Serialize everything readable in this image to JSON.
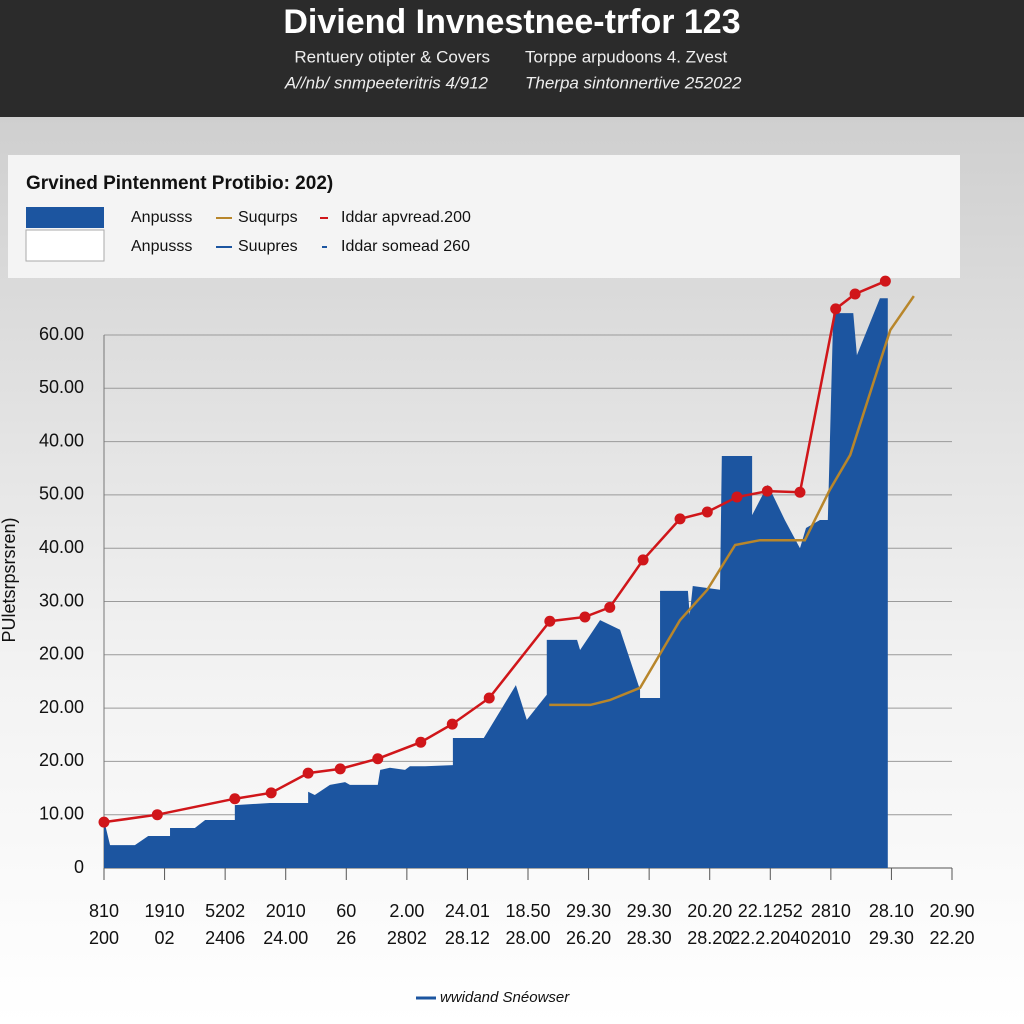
{
  "header": {
    "title": "Diviend Invnestnee-trfor 123",
    "lines": [
      [
        "Rentuery otipter & Covers",
        "Torppe arpudoons 4. Zvest"
      ],
      [
        "A//nb/ snmpeeteritris 4/912",
        "Therpa sintonnertive 252022"
      ]
    ]
  },
  "chart_data": {
    "type": "area-line",
    "title": "Grvined Pintenment Protibio: 202)",
    "y_label": "PUletsrpsrsren)",
    "bottom_legend": "wwidand Snéowser",
    "categories": [
      [
        "810",
        "200"
      ],
      [
        "1910",
        "02"
      ],
      [
        "5202",
        "2406"
      ],
      [
        "2010",
        "24.00"
      ],
      [
        "60",
        "26"
      ],
      [
        "2.00",
        "2802"
      ],
      [
        "24.01",
        "28.12"
      ],
      [
        "18.50",
        "28.00"
      ],
      [
        "29.30",
        "26.20"
      ],
      [
        "29.30",
        "28.30"
      ],
      [
        "20.20",
        "28.20"
      ],
      [
        "22.1252",
        "22.2.2040"
      ],
      [
        "2810",
        "2010"
      ],
      [
        "28.10",
        "29.30"
      ],
      [
        "20.90",
        "22.20"
      ]
    ],
    "xlim": [
      0,
      14
    ],
    "ylim": [
      0,
      112
    ],
    "yticks": [
      0,
      {
        "value": 10,
        "label": "10.00"
      },
      {
        "value": 20,
        "label": "20.00"
      },
      {
        "value": 30,
        "label": "20.00"
      },
      {
        "value": 40,
        "label": "20.00"
      },
      {
        "value": 50,
        "label": "30.00"
      },
      {
        "value": 60,
        "label": "40.00"
      },
      {
        "value": 70,
        "label": "50.00"
      },
      {
        "value": 80,
        "label": "40.00"
      },
      {
        "value": 90,
        "label": "50.00"
      },
      {
        "value": 100,
        "label": "60.00"
      }
    ],
    "grid": true,
    "series": [
      {
        "name": "Anpusss",
        "kind": "area",
        "color": "#1c55a0",
        "x": [
          0,
          0.1,
          0.51,
          0.73,
          1.09,
          1.09,
          1.5,
          1.67,
          2.16,
          2.16,
          2.74,
          2.94,
          3.37,
          3.37,
          3.48,
          3.73,
          3.98,
          4.06,
          4.52,
          4.56,
          4.72,
          4.97,
          5.05,
          5.3,
          5.76,
          5.76,
          6.27,
          6.8,
          6.98,
          7.31,
          7.31,
          7.81,
          7.86,
          8.19,
          8.52,
          8.85,
          8.85,
          9.18,
          9.18,
          9.64,
          9.67,
          9.72,
          10.17,
          10.2,
          10.7,
          10.7,
          10.96,
          11.24,
          11.49,
          11.59,
          11.82,
          11.95,
          12.04,
          12.37,
          12.43,
          12.81,
          12.94
        ],
        "values": [
          9.0,
          4.3,
          4.3,
          6.0,
          6.0,
          7.5,
          7.5,
          9.0,
          9.0,
          11.8,
          12.2,
          12.2,
          12.2,
          14.3,
          13.7,
          15.6,
          16.1,
          15.6,
          15.6,
          18.4,
          18.8,
          18.4,
          19.1,
          19.1,
          19.3,
          24.4,
          24.4,
          34.3,
          27.8,
          32.5,
          42.8,
          42.8,
          40.9,
          46.5,
          44.7,
          33.4,
          31.9,
          31.9,
          52.0,
          52.0,
          47.5,
          52.9,
          52.2,
          77.3,
          77.3,
          66.2,
          71.9,
          65.3,
          60.0,
          63.8,
          65.3,
          65.3,
          104.1,
          104.1,
          96.2,
          106.9,
          106.9
        ]
      },
      {
        "name": "Suqurps",
        "kind": "line",
        "color": "#b8862b",
        "x": [
          7.35,
          8.03,
          8.35,
          8.85,
          9.51,
          9.96,
          10.42,
          10.83,
          11.57,
          11.98,
          12.32,
          12.98,
          13.37
        ],
        "values": [
          30.6,
          30.6,
          31.5,
          33.8,
          46.5,
          52.2,
          60.6,
          61.5,
          61.5,
          70.9,
          77.5,
          100.9,
          107.3
        ]
      },
      {
        "name": "Iddar apvread.200",
        "kind": "line-dots",
        "color": "#d0161a",
        "x": [
          0,
          0.88,
          2.16,
          2.76,
          3.37,
          3.9,
          4.52,
          5.23,
          5.75,
          6.36,
          7.36,
          7.94,
          8.35,
          8.9,
          9.51,
          9.96,
          10.45,
          10.95,
          11.49,
          12.08,
          12.4,
          12.9
        ],
        "values": [
          8.6,
          10.0,
          13.0,
          14.1,
          17.8,
          18.6,
          20.5,
          23.6,
          27.0,
          31.9,
          46.3,
          47.1,
          48.9,
          57.8,
          65.5,
          66.8,
          69.6,
          70.7,
          70.5,
          104.9,
          107.7,
          110.1
        ]
      }
    ],
    "legend_extra": [
      {
        "name": "Anpusss"
      },
      {
        "name": "Suupres",
        "color": "#1c55a0"
      },
      {
        "name": "Iddar somead 260",
        "color": "#1c55a0"
      }
    ]
  }
}
